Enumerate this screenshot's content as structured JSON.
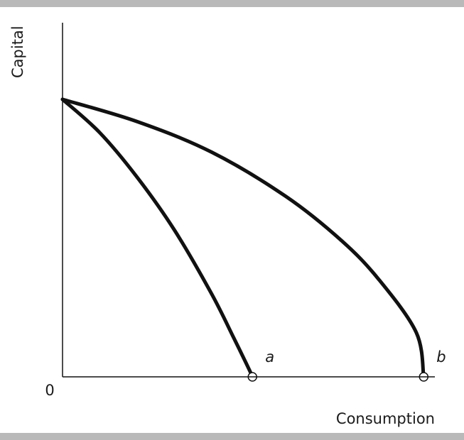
{
  "chart_data": {
    "type": "line",
    "title": "",
    "xlabel": "Consumption",
    "ylabel": "Capital",
    "origin_label": "0",
    "xlim": [
      0,
      100
    ],
    "ylim": [
      0,
      100
    ],
    "grid": false,
    "series": [
      {
        "name": "a",
        "x": [
          0,
          10,
          20,
          30,
          40,
          46,
          50,
          51
        ],
        "y": [
          100,
          88,
          72,
          53,
          30,
          14,
          3,
          0
        ]
      },
      {
        "name": "b",
        "x": [
          0,
          20,
          40,
          60,
          75,
          85,
          95,
          97
        ],
        "y": [
          100,
          92,
          81,
          65,
          49,
          35,
          16,
          0
        ]
      }
    ],
    "points": [
      {
        "label": "a",
        "x": 51,
        "y": 0
      },
      {
        "label": "b",
        "x": 97,
        "y": 0
      }
    ]
  },
  "colors": {
    "band": "#b9b9b9",
    "curve": "#111111",
    "axis": "#111111"
  }
}
